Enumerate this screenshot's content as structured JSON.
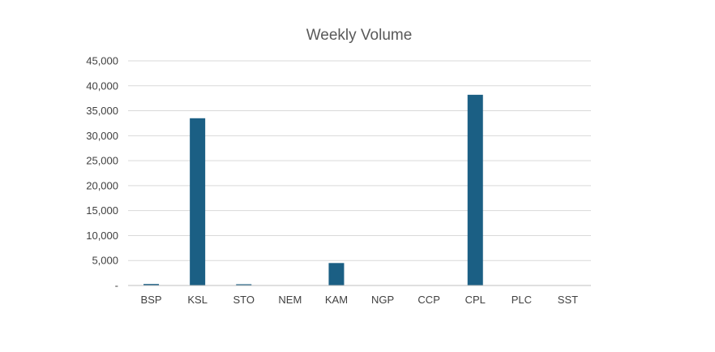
{
  "chart_data": {
    "type": "bar",
    "title": "Weekly Volume",
    "xlabel": "",
    "ylabel": "",
    "categories": [
      "BSP",
      "KSL",
      "STO",
      "NEM",
      "KAM",
      "NGP",
      "CCP",
      "CPL",
      "PLC",
      "SST"
    ],
    "values": [
      300,
      33500,
      250,
      0,
      4500,
      0,
      0,
      38200,
      0,
      0
    ],
    "ylim": [
      0,
      45000
    ],
    "yticks": [
      0,
      5000,
      10000,
      15000,
      20000,
      25000,
      30000,
      35000,
      40000,
      45000
    ],
    "ytick_labels": [
      "-",
      "5,000",
      "10,000",
      "15,000",
      "20,000",
      "25,000",
      "30,000",
      "35,000",
      "40,000",
      "45,000"
    ],
    "grid": true,
    "legend": "none",
    "colors": {
      "bar": "#1b5f84",
      "grid": "#d9d9d9",
      "axis": "#bfbfbf",
      "title": "#595959",
      "tick_label": "#404040"
    }
  }
}
